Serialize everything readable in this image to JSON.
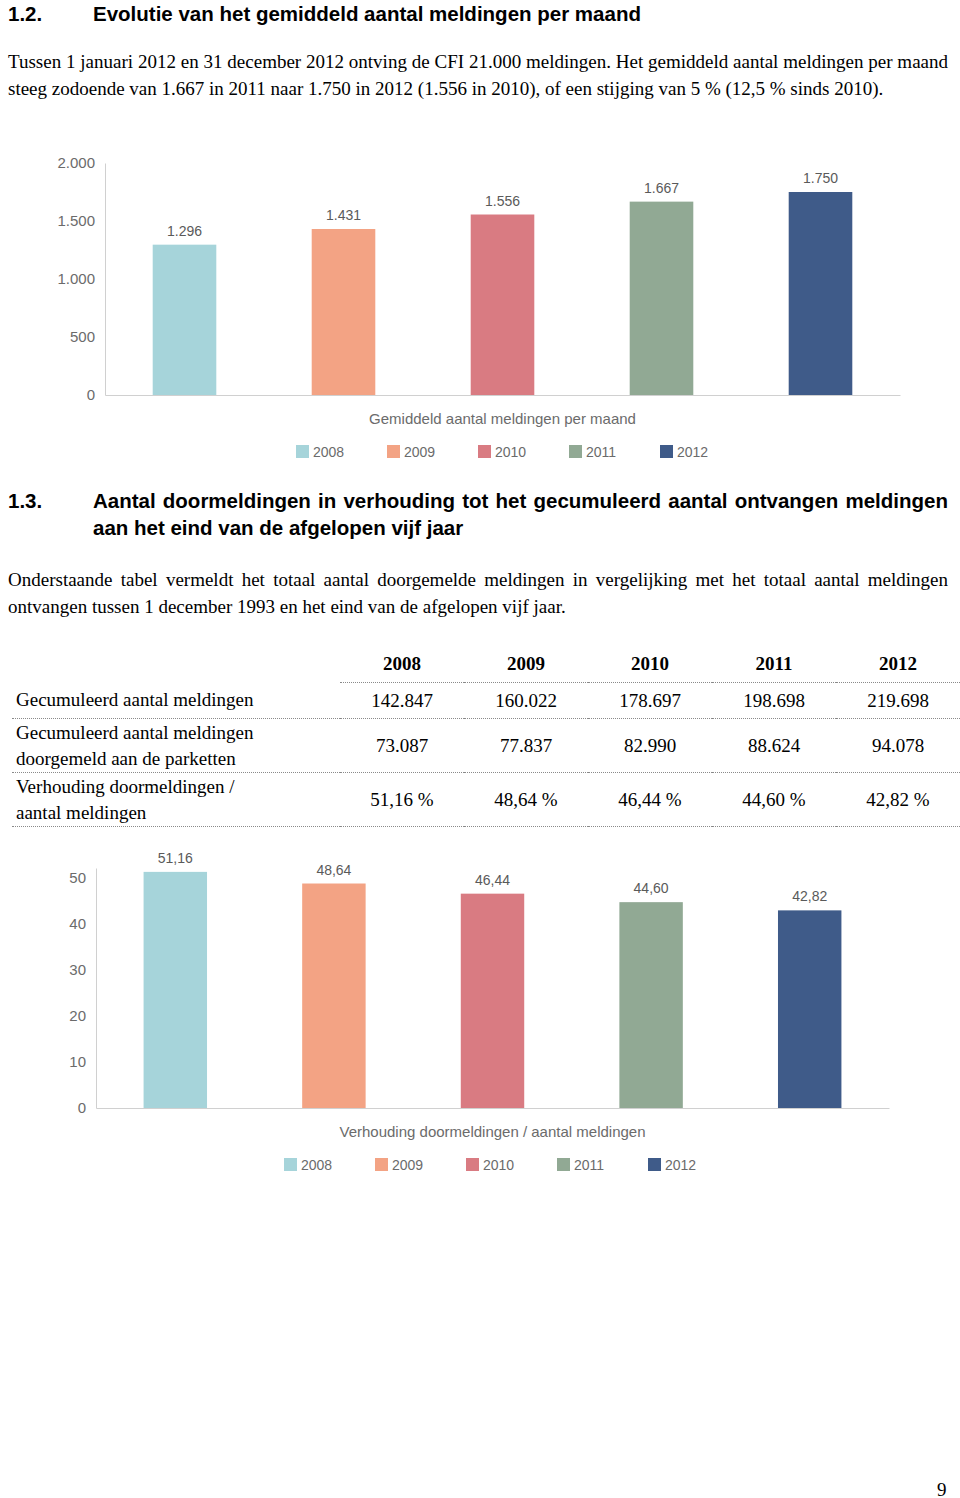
{
  "section_1_2": {
    "number": "1.2.",
    "heading": "Evolutie van het gemiddeld aantal meldingen per maand",
    "paragraph": "Tussen 1 januari 2012 en 31 december 2012 ontving de CFI 21.000 meldingen. Het gemiddeld aantal meldingen per maand steeg zodoende van 1.667 in 2011 naar 1.750 in 2012 (1.556 in 2010), of een stijging van 5 % (12,5 % sinds 2010)."
  },
  "section_1_3": {
    "number": "1.3.",
    "heading": "Aantal doormeldingen in verhouding tot het gecumuleerd aantal ontvangen meldingen aan het eind van de afgelopen vijf jaar",
    "paragraph": "Onderstaande tabel vermeldt het totaal aantal doorgemelde meldingen in vergelijking met het totaal aantal meldingen ontvangen tussen 1 december 1993 en het eind van de afgelopen vijf jaar."
  },
  "table": {
    "header": [
      "2008",
      "2009",
      "2010",
      "2011",
      "2012"
    ],
    "rows": [
      {
        "label": [
          "Gecumuleerd aantal meldingen"
        ],
        "values": [
          "142.847",
          "160.022",
          "178.697",
          "198.698",
          "219.698"
        ]
      },
      {
        "label": [
          "Gecumuleerd aantal meldingen",
          "doorgemeld aan de parketten"
        ],
        "values": [
          "73.087",
          "77.837",
          "82.990",
          "88.624",
          "94.078"
        ]
      },
      {
        "label": [
          "Verhouding doormeldingen /",
          "aantal meldingen"
        ],
        "values": [
          "51,16 %",
          "48,64 %",
          "46,44 %",
          "44,60 %",
          "42,82 %"
        ]
      }
    ]
  },
  "chart_data": [
    {
      "type": "bar",
      "categories": [
        "Gemiddeld aantal meldingen per maand"
      ],
      "series": [
        {
          "name": "2008",
          "color": "#a6d4da",
          "values": [
            1296
          ],
          "value_labels": [
            "1.296"
          ]
        },
        {
          "name": "2009",
          "color": "#f3a384",
          "values": [
            1431
          ],
          "value_labels": [
            "1.431"
          ]
        },
        {
          "name": "2010",
          "color": "#d97b82",
          "values": [
            1556
          ],
          "value_labels": [
            "1.556"
          ]
        },
        {
          "name": "2011",
          "color": "#91a994",
          "values": [
            1667
          ],
          "value_labels": [
            "1.667"
          ]
        },
        {
          "name": "2012",
          "color": "#3f5b89",
          "values": [
            1750
          ],
          "value_labels": [
            "1.750"
          ]
        }
      ],
      "ylim": [
        0,
        2000
      ],
      "yticks": [
        0,
        500,
        {
          "value": 1000,
          "label": "1.000"
        },
        {
          "value": 1500,
          "label": "1.500"
        },
        {
          "value": 2000,
          "label": "2.000"
        }
      ],
      "grid": false,
      "legend": "bottom",
      "data_labels": true
    },
    {
      "type": "bar",
      "categories": [
        "Verhouding doormeldingen / aantal meldingen"
      ],
      "series": [
        {
          "name": "2008",
          "color": "#a6d4da",
          "values": [
            51.16
          ],
          "value_labels": [
            "51,16"
          ]
        },
        {
          "name": "2009",
          "color": "#f3a384",
          "values": [
            48.64
          ],
          "value_labels": [
            "48,64"
          ]
        },
        {
          "name": "2010",
          "color": "#d97b82",
          "values": [
            46.44
          ],
          "value_labels": [
            "46,44"
          ]
        },
        {
          "name": "2011",
          "color": "#91a994",
          "values": [
            44.6
          ],
          "value_labels": [
            "44,60"
          ]
        },
        {
          "name": "2012",
          "color": "#3f5b89",
          "values": [
            42.82
          ],
          "value_labels": [
            "42,82"
          ]
        }
      ],
      "ylim": [
        0,
        52
      ],
      "yticks": [
        0,
        10,
        20,
        30,
        40,
        50
      ],
      "grid": false,
      "legend": "bottom",
      "data_labels": true
    }
  ],
  "page_number": "9"
}
